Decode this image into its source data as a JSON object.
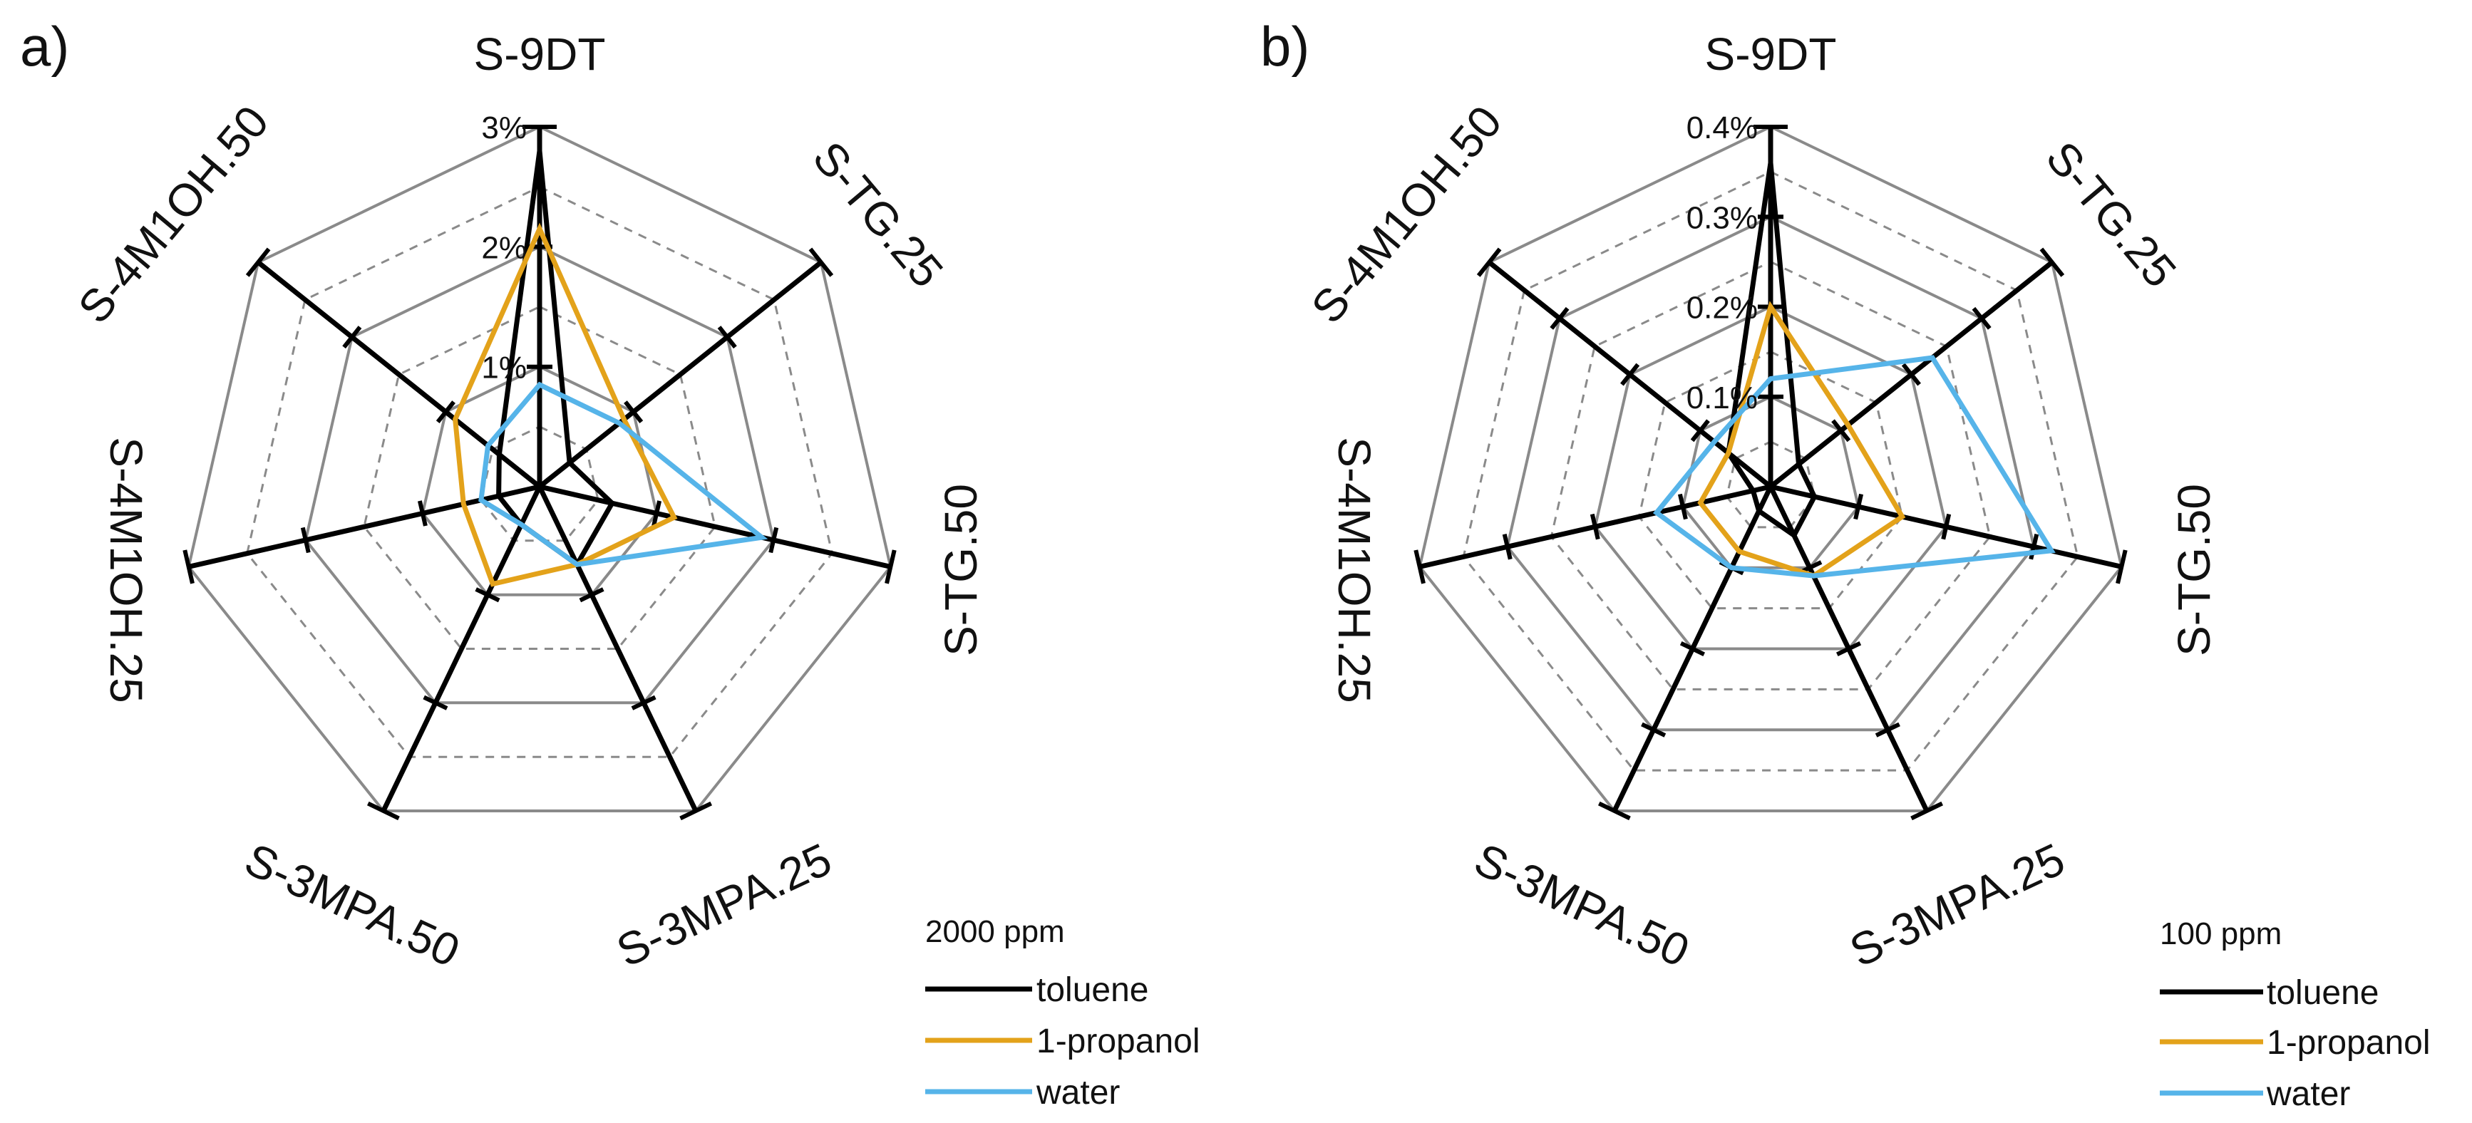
{
  "chart_data": [
    {
      "panel_label": "a)",
      "type": "radar",
      "axes": [
        "S-9DT",
        "S-TG.25",
        "S-TG.50",
        "S-3MPA.25",
        "S-3MPA.50",
        "S-4M1OH.25",
        "S-4M1OH.50"
      ],
      "rmax": 3,
      "ring_count": 6,
      "tick_values": [
        1,
        2,
        3
      ],
      "tick_labels": [
        "1%",
        "2%",
        "3%"
      ],
      "unit": "%",
      "series": [
        {
          "name": "toluene",
          "color": "#000000",
          "values": [
            2.8,
            0.32,
            0.62,
            0.72,
            0.35,
            0.35,
            0.43
          ]
        },
        {
          "name": "1-propanol",
          "color": "#e3a21a",
          "values": [
            2.15,
            0.9,
            1.15,
            0.72,
            0.9,
            0.65,
            0.9
          ]
        },
        {
          "name": "water",
          "color": "#56b4e9",
          "values": [
            0.85,
            0.85,
            1.9,
            0.72,
            0.35,
            0.5,
            0.55
          ]
        }
      ],
      "legend": {
        "title": "2000 ppm",
        "entries": [
          "toluene",
          "1-propanol",
          "water"
        ]
      }
    },
    {
      "panel_label": "b)",
      "type": "radar",
      "axes": [
        "S-9DT",
        "S-TG.25",
        "S-TG.50",
        "S-3MPA.25",
        "S-3MPA.50",
        "S-4M1OH.25",
        "S-4M1OH.50"
      ],
      "rmax": 0.4,
      "ring_count": 8,
      "tick_values": [
        0.1,
        0.2,
        0.3,
        0.4
      ],
      "tick_labels": [
        "0.1%",
        "0.2%",
        "0.3%",
        "0.4%"
      ],
      "unit": "%",
      "series": [
        {
          "name": "toluene",
          "color": "#000000",
          "values": [
            0.36,
            0.04,
            0.05,
            0.06,
            0.03,
            0.02,
            0.06
          ]
        },
        {
          "name": "1-propanol",
          "color": "#e3a21a",
          "values": [
            0.2,
            0.11,
            0.15,
            0.11,
            0.08,
            0.08,
            0.06
          ]
        },
        {
          "name": "water",
          "color": "#56b4e9",
          "values": [
            0.12,
            0.23,
            0.32,
            0.11,
            0.1,
            0.13,
            0.08
          ]
        }
      ],
      "legend": {
        "title": "100 ppm",
        "entries": [
          "toluene",
          "1-propanol",
          "water"
        ]
      }
    }
  ]
}
